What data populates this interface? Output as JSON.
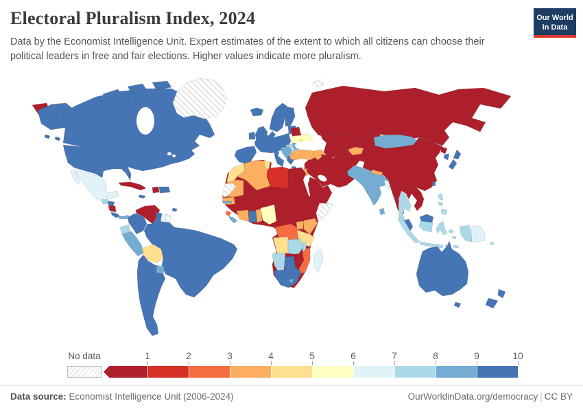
{
  "header": {
    "title": "Electoral Pluralism Index, 2024",
    "subtitle": "Data by the Economist Intelligence Unit. Expert estimates of the extent to which all citizens can choose their political leaders in free and fair elections. Higher values indicate more pluralism.",
    "logo": {
      "line1": "Our World",
      "line2": "in Data",
      "bg": "#1d3d63",
      "accent": "#dc3830"
    }
  },
  "legend": {
    "no_data_label": "No data",
    "ticks": [
      "1",
      "2",
      "3",
      "4",
      "5",
      "6",
      "7",
      "8",
      "9",
      "10"
    ],
    "colors": [
      "#ad1f2b",
      "#d73027",
      "#f46d43",
      "#fdae61",
      "#fee090",
      "#ffffbf",
      "#e0f3f8",
      "#abd9e9",
      "#74add1",
      "#4575b4"
    ]
  },
  "footer": {
    "source_label": "Data source:",
    "source_value": " Economist Intelligence Unit (2006-2024)",
    "right_link": "OurWorldinData.org/democracy",
    "separator": "|",
    "license": "CC BY"
  },
  "chart_data": {
    "type": "heatmap",
    "title": "Electoral Pluralism Index, 2024",
    "legend_bins": [
      0,
      1,
      2,
      3,
      4,
      5,
      6,
      7,
      8,
      9,
      10
    ],
    "legend_position": "bottom",
    "no_data_style": "hatched"
  },
  "map": {
    "countries": {
      "chukotka": 0,
      "canada": 9,
      "arctic-islands": 9,
      "greenland": "nodata",
      "usa": 9,
      "alaska": 9,
      "mexico": 6,
      "guatemala": 7,
      "honduras": 9,
      "nicaragua": 0,
      "costa-rica": 9,
      "panama": 8,
      "cuba": 0,
      "jamaica": 9,
      "haiti": 0,
      "dominican-republic": 9,
      "trinidad": 9,
      "colombia": 9,
      "venezuela": 0,
      "guyana": 9,
      "suriname": 6,
      "french-guiana": "nodata",
      "ecuador": 7,
      "peru": 8,
      "brazil": 9,
      "bolivia": 4,
      "paraguay": 8,
      "southern-cone": 9,
      "iceland": 9,
      "uk": 9,
      "ireland": 9,
      "scandinavia": 9,
      "finland": 9,
      "baltics": 9,
      "europe-mainland": 9,
      "iberia": 9,
      "italy": 9,
      "greece": 9,
      "hungary": 7,
      "romania": 8,
      "western-balkans": 8,
      "bulgaria": 7,
      "belarus": 0,
      "ukraine": 5,
      "moldova": 4,
      "russia": 0,
      "central-asia": 0,
      "caucasus": 3,
      "azerbaijan": 0,
      "turkey": 3,
      "middle-east": 0,
      "israel": 3,
      "africa-base": 0,
      "morocco": 4,
      "algeria": 3,
      "tunisia": 4,
      "libya": 1,
      "mauritania": 3,
      "senegal": 3,
      "gambia": 8,
      "sierra-leone": 2,
      "liberia": 8,
      "ivory-coast": 3,
      "ghana": 9,
      "togo-benin": 3,
      "nigeria": 5,
      "drc": 2,
      "uganda": 3,
      "kenya": 3,
      "rwanda-burundi": 2,
      "tanzania": 4,
      "angola": 4,
      "zambia": 7,
      "malawi": 7,
      "mozambique": 2,
      "zimbabwe": 0,
      "botswana": 9,
      "namibia": 7,
      "south-africa": 9,
      "lesotho": 8,
      "madagascar": 6,
      "somalia": "nodata",
      "western-sahara": "nodata",
      "svalbard": "nodata",
      "china": 0,
      "mongolia": 8,
      "kyrgyzstan": 3,
      "india": 8,
      "nepal": 3,
      "bangladesh": 6,
      "sri-lanka": 8,
      "se-asia-mainland": 0,
      "thailand": 7,
      "malaysia": 9,
      "sumatra": 7,
      "java": 7,
      "borneo-malaysia": 9,
      "borneo-indonesia": 7,
      "sulawesi": 7,
      "lesser-sunda": 7,
      "moluccas": 7,
      "papua-west": 7,
      "papua-east": 6,
      "philippines": 7,
      "north-korea": 0,
      "south-korea": 9,
      "japan": 9,
      "taiwan": 9,
      "australia": 9,
      "tasmania": 9,
      "new-zealand": 9,
      "fiji": 7
    }
  }
}
